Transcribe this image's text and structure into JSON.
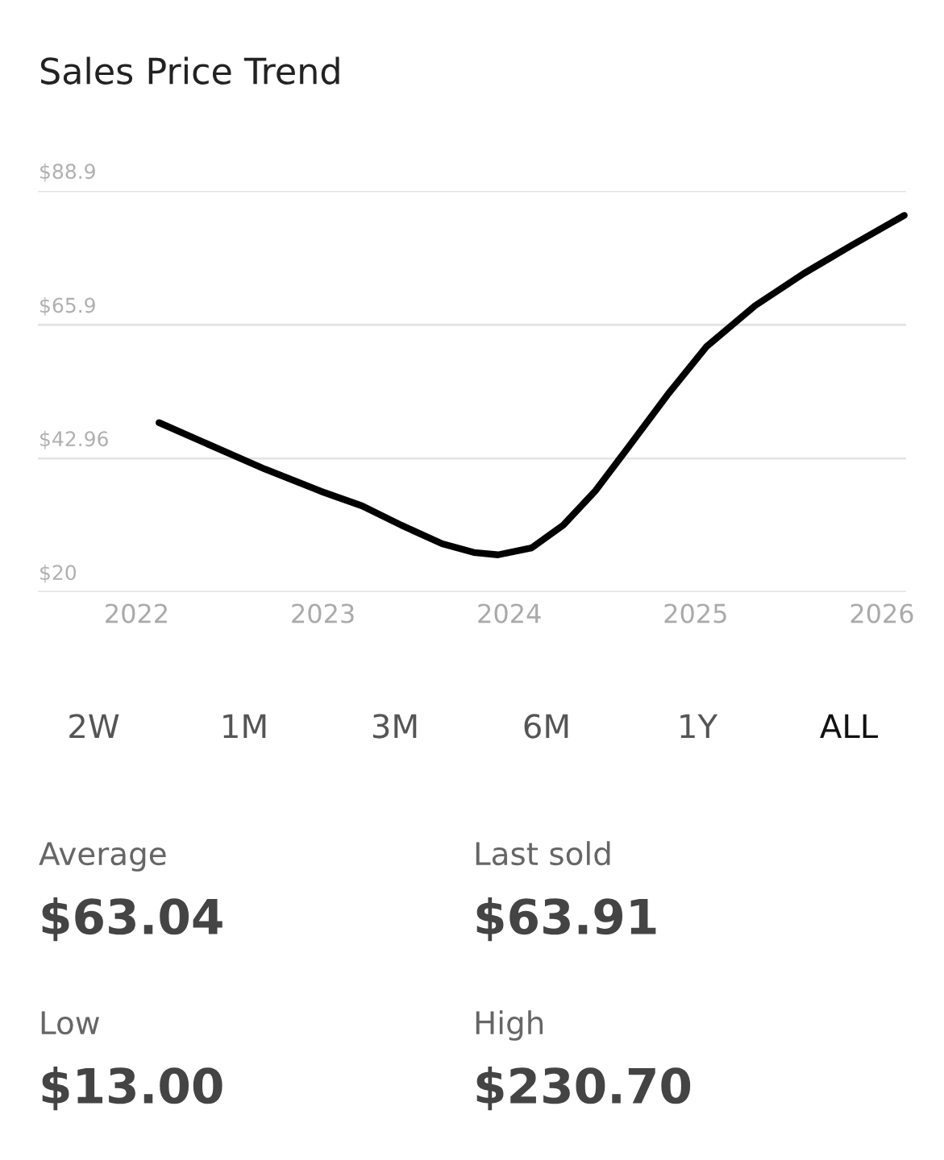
{
  "chart_data": {
    "type": "line",
    "title": "Sales Price Trend",
    "x": [
      2022.12,
      2022.39,
      2022.69,
      2022.99,
      2023.21,
      2023.42,
      2023.64,
      2023.81,
      2023.94,
      2024.12,
      2024.29,
      2024.46,
      2024.63,
      2024.85,
      2025.06,
      2025.32,
      2025.58,
      2025.84,
      2026.12
    ],
    "series": [
      {
        "color": "#000000",
        "values": [
          49.1,
          45.3,
          41.1,
          37.3,
          34.8,
          31.5,
          28.3,
          26.8,
          26.4,
          27.6,
          31.5,
          37.3,
          44.5,
          53.9,
          62.2,
          69.2,
          74.7,
          79.6,
          84.7
        ]
      }
    ],
    "xlim": [
      2021.47,
      2026.13
    ],
    "xticks": [
      2022,
      2023,
      2024,
      2025,
      2026
    ],
    "ylim": [
      20,
      88.9
    ],
    "yticks": [
      {
        "value": 20,
        "label": "$20"
      },
      {
        "value": 42.96,
        "label": "$42.96"
      },
      {
        "value": 65.9,
        "label": "$65.9"
      },
      {
        "value": 88.9,
        "label": "$88.9"
      }
    ],
    "grid": "y",
    "legend": false,
    "marker": "none",
    "line_style": "solid",
    "annotations": [
      "2W",
      "1M",
      "3M",
      "6M",
      "1Y",
      "ALL",
      "Average",
      "$63.04",
      "Last sold",
      "$63.91",
      "Low",
      "$13.00",
      "High",
      "$230.70"
    ]
  }
}
